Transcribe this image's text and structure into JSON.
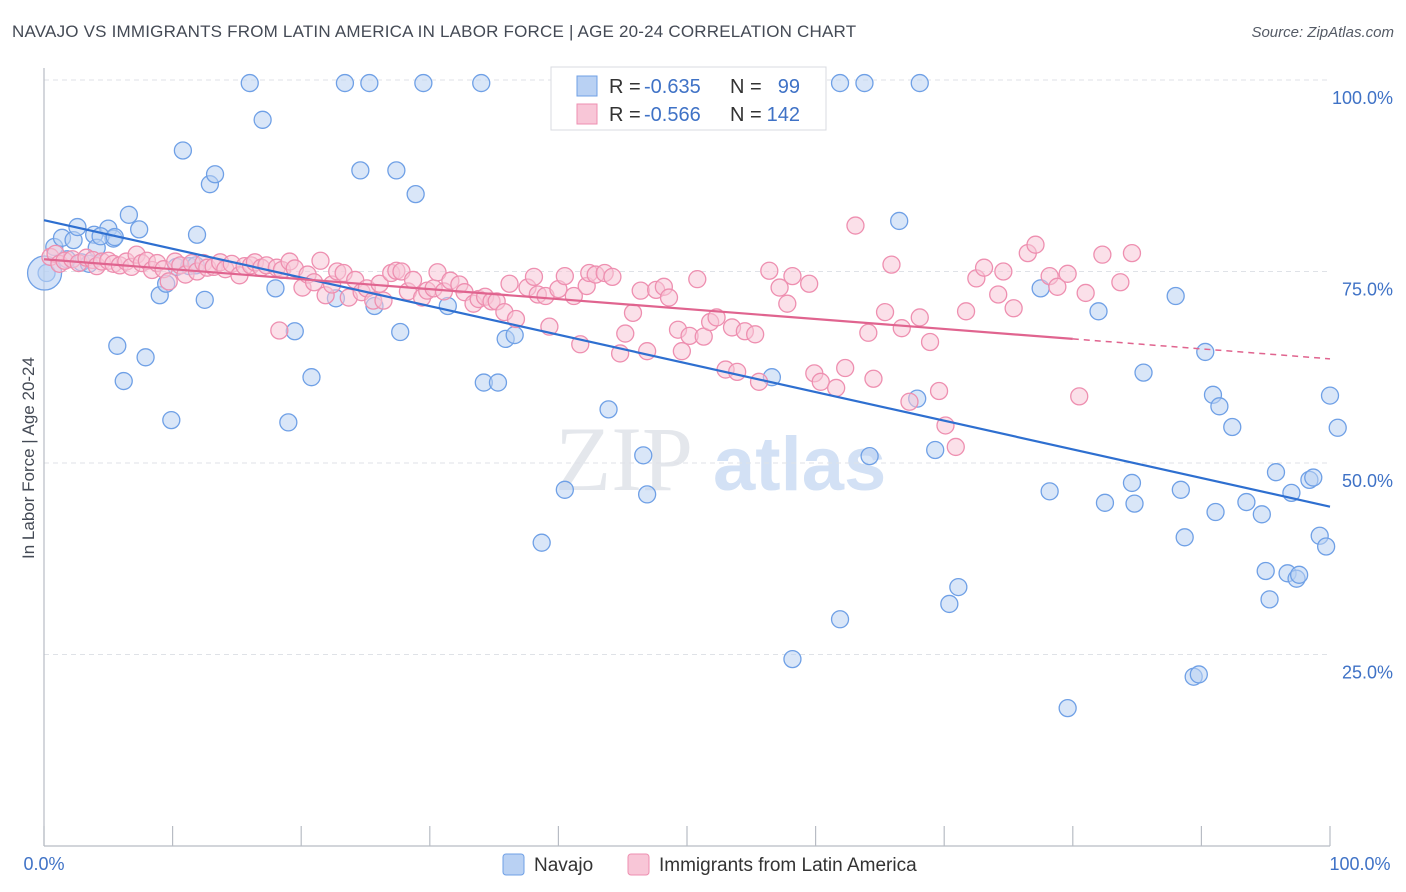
{
  "title": "NAVAJO VS IMMIGRANTS FROM LATIN AMERICA IN LABOR FORCE | AGE 20-24 CORRELATION CHART",
  "source": "Source: ZipAtlas.com",
  "watermark": {
    "zip": "ZIP",
    "atlas": "atlas"
  },
  "chart_data": {
    "type": "scatter",
    "title": "NAVAJO VS IMMIGRANTS FROM LATIN AMERICA IN LABOR FORCE | AGE 20-24 CORRELATION CHART",
    "xlabel": "",
    "ylabel": "In Labor Force | Age 20-24",
    "xlim": [
      0,
      100
    ],
    "ylim": [
      0,
      100
    ],
    "x_tick_labels": [
      "0.0%",
      "100.0%"
    ],
    "y_ticks": [
      25,
      50,
      75,
      100
    ],
    "y_tick_labels": [
      "25.0%",
      "50.0%",
      "75.0%",
      "100.0%"
    ],
    "grid": true,
    "legend_position": "top-center",
    "stats_legend": [
      {
        "r_label": "R = ",
        "r": "-0.635",
        "n_label": "N = ",
        "n": "99"
      },
      {
        "r_label": "R = ",
        "r": "-0.566",
        "n_label": "N = ",
        "n": "142"
      }
    ],
    "series": [
      {
        "name": "Navajo",
        "color": "#6fa0e6",
        "fill": "#b9d1f3",
        "trend_color": "#2e6fd0",
        "trend": {
          "x0": 0,
          "y0": 81.7,
          "x1": 100,
          "y1": 44.3
        },
        "points": [
          [
            0.2,
            74.8
          ],
          [
            0.8,
            78.2
          ],
          [
            1.4,
            79.4
          ],
          [
            1.8,
            76.6
          ],
          [
            2.3,
            79.1
          ],
          [
            2.6,
            80.8
          ],
          [
            2.9,
            76.2
          ],
          [
            3.5,
            76.0
          ],
          [
            3.9,
            79.8
          ],
          [
            4.1,
            78.1
          ],
          [
            5.0,
            80.6
          ],
          [
            5.4,
            79.3
          ],
          [
            4.4,
            79.6
          ],
          [
            5.5,
            79.5
          ],
          [
            6.6,
            82.4
          ],
          [
            7.4,
            80.5
          ],
          [
            5.7,
            65.3
          ],
          [
            6.2,
            60.7
          ],
          [
            7.9,
            63.8
          ],
          [
            9.0,
            71.9
          ],
          [
            9.5,
            73.4
          ],
          [
            9.9,
            55.6
          ],
          [
            10.3,
            75.6
          ],
          [
            10.8,
            90.8
          ],
          [
            11.3,
            75.7
          ],
          [
            11.8,
            75.8
          ],
          [
            11.9,
            79.8
          ],
          [
            12.5,
            71.3
          ],
          [
            12.9,
            86.4
          ],
          [
            13.3,
            87.7
          ],
          [
            16.0,
            99.6
          ],
          [
            17.0,
            94.8
          ],
          [
            18.0,
            72.8
          ],
          [
            19.0,
            55.3
          ],
          [
            19.5,
            67.2
          ],
          [
            20.8,
            61.2
          ],
          [
            22.7,
            71.5
          ],
          [
            23.4,
            99.6
          ],
          [
            24.6,
            88.2
          ],
          [
            25.3,
            99.6
          ],
          [
            25.7,
            70.5
          ],
          [
            27.4,
            88.2
          ],
          [
            27.7,
            67.1
          ],
          [
            28.9,
            85.1
          ],
          [
            29.5,
            99.6
          ],
          [
            31.4,
            70.5
          ],
          [
            34.0,
            99.6
          ],
          [
            34.2,
            60.5
          ],
          [
            35.3,
            60.5
          ],
          [
            35.9,
            66.2
          ],
          [
            36.6,
            66.7
          ],
          [
            38.7,
            39.6
          ],
          [
            40.5,
            46.5
          ],
          [
            43.9,
            57.0
          ],
          [
            46.6,
            51.0
          ],
          [
            46.9,
            45.9
          ],
          [
            56.0,
            99.6
          ],
          [
            56.6,
            61.2
          ],
          [
            58.2,
            24.4
          ],
          [
            59.3,
            99.6
          ],
          [
            61.9,
            29.6
          ],
          [
            61.9,
            99.6
          ],
          [
            63.8,
            99.6
          ],
          [
            64.2,
            50.9
          ],
          [
            66.5,
            81.6
          ],
          [
            67.9,
            58.4
          ],
          [
            68.1,
            99.6
          ],
          [
            69.3,
            51.7
          ],
          [
            70.4,
            31.6
          ],
          [
            71.1,
            33.8
          ],
          [
            77.5,
            72.8
          ],
          [
            78.2,
            46.3
          ],
          [
            79.6,
            18.0
          ],
          [
            82.0,
            69.8
          ],
          [
            82.5,
            44.8
          ],
          [
            84.6,
            47.4
          ],
          [
            84.8,
            44.7
          ],
          [
            85.5,
            61.8
          ],
          [
            88.0,
            71.8
          ],
          [
            88.4,
            46.5
          ],
          [
            88.7,
            40.3
          ],
          [
            89.4,
            22.1
          ],
          [
            89.8,
            22.4
          ],
          [
            90.3,
            64.5
          ],
          [
            90.9,
            58.9
          ],
          [
            91.1,
            43.6
          ],
          [
            91.4,
            57.4
          ],
          [
            92.4,
            54.7
          ],
          [
            93.5,
            44.9
          ],
          [
            94.7,
            43.3
          ],
          [
            95.0,
            35.9
          ],
          [
            95.3,
            32.2
          ],
          [
            95.8,
            48.8
          ],
          [
            96.7,
            35.6
          ],
          [
            97.0,
            46.1
          ],
          [
            97.4,
            34.9
          ],
          [
            97.6,
            35.4
          ],
          [
            98.4,
            47.8
          ],
          [
            98.7,
            48.1
          ],
          [
            99.2,
            40.5
          ],
          [
            99.7,
            39.1
          ],
          [
            100.0,
            58.8
          ],
          [
            100.6,
            54.6
          ]
        ]
      },
      {
        "name": "Immigrants from Latin America",
        "color": "#ee8fb0",
        "fill": "#f8c6d7",
        "trend_color": "#e0648f",
        "trend": {
          "x0": 0,
          "y0": 76.6,
          "x1": 80,
          "y1": 66.2
        },
        "trend_dash": {
          "x0": 80,
          "y0": 66.2,
          "x1": 100,
          "y1": 63.6
        },
        "points": [
          [
            0.5,
            76.9
          ],
          [
            0.9,
            77.3
          ],
          [
            1.2,
            76.0
          ],
          [
            1.6,
            76.4
          ],
          [
            2.2,
            76.6
          ],
          [
            2.7,
            76.1
          ],
          [
            3.3,
            76.8
          ],
          [
            3.8,
            76.5
          ],
          [
            4.1,
            75.7
          ],
          [
            4.5,
            76.3
          ],
          [
            5.0,
            76.4
          ],
          [
            5.4,
            76.0
          ],
          [
            5.9,
            75.8
          ],
          [
            6.4,
            76.3
          ],
          [
            6.8,
            75.6
          ],
          [
            7.2,
            77.2
          ],
          [
            7.6,
            76.1
          ],
          [
            8.0,
            76.4
          ],
          [
            8.4,
            75.2
          ],
          [
            8.8,
            76.1
          ],
          [
            9.3,
            75.3
          ],
          [
            9.7,
            73.7
          ],
          [
            10.2,
            76.3
          ],
          [
            10.6,
            75.8
          ],
          [
            11.0,
            74.6
          ],
          [
            11.5,
            76.1
          ],
          [
            11.9,
            75.0
          ],
          [
            12.4,
            76.1
          ],
          [
            12.7,
            75.5
          ],
          [
            13.2,
            75.6
          ],
          [
            13.7,
            76.2
          ],
          [
            14.1,
            75.3
          ],
          [
            14.6,
            76.0
          ],
          [
            15.2,
            74.5
          ],
          [
            15.6,
            75.7
          ],
          [
            16.1,
            75.8
          ],
          [
            16.4,
            76.2
          ],
          [
            16.9,
            75.5
          ],
          [
            17.3,
            75.8
          ],
          [
            18.1,
            75.5
          ],
          [
            18.5,
            75.2
          ],
          [
            18.3,
            67.3
          ],
          [
            19.1,
            76.3
          ],
          [
            19.5,
            75.4
          ],
          [
            20.1,
            72.9
          ],
          [
            20.5,
            74.6
          ],
          [
            21.0,
            73.6
          ],
          [
            21.5,
            76.4
          ],
          [
            21.9,
            71.9
          ],
          [
            22.4,
            73.3
          ],
          [
            22.8,
            75.0
          ],
          [
            23.3,
            74.8
          ],
          [
            23.7,
            71.6
          ],
          [
            24.2,
            73.9
          ],
          [
            24.7,
            72.3
          ],
          [
            25.1,
            72.8
          ],
          [
            25.6,
            71.2
          ],
          [
            26.1,
            73.4
          ],
          [
            26.4,
            71.2
          ],
          [
            27.0,
            74.8
          ],
          [
            27.4,
            75.1
          ],
          [
            27.8,
            75.0
          ],
          [
            28.3,
            72.4
          ],
          [
            28.7,
            73.9
          ],
          [
            29.4,
            71.6
          ],
          [
            29.8,
            72.5
          ],
          [
            30.3,
            72.8
          ],
          [
            30.6,
            74.9
          ],
          [
            31.1,
            72.4
          ],
          [
            31.6,
            73.8
          ],
          [
            32.3,
            73.3
          ],
          [
            32.7,
            72.3
          ],
          [
            33.4,
            70.8
          ],
          [
            33.8,
            71.4
          ],
          [
            34.3,
            71.7
          ],
          [
            34.8,
            71.1
          ],
          [
            35.2,
            71.1
          ],
          [
            35.8,
            69.7
          ],
          [
            36.2,
            73.4
          ],
          [
            36.7,
            68.8
          ],
          [
            37.6,
            72.9
          ],
          [
            38.1,
            74.3
          ],
          [
            38.4,
            72.0
          ],
          [
            39.0,
            71.8
          ],
          [
            39.3,
            67.8
          ],
          [
            40.0,
            72.7
          ],
          [
            40.5,
            74.4
          ],
          [
            41.2,
            71.8
          ],
          [
            41.7,
            65.5
          ],
          [
            42.2,
            73.1
          ],
          [
            42.4,
            74.8
          ],
          [
            42.9,
            74.6
          ],
          [
            43.6,
            74.8
          ],
          [
            44.2,
            74.3
          ],
          [
            44.8,
            64.3
          ],
          [
            45.2,
            66.9
          ],
          [
            45.8,
            69.6
          ],
          [
            46.4,
            72.5
          ],
          [
            46.9,
            64.6
          ],
          [
            47.6,
            72.6
          ],
          [
            48.2,
            73.0
          ],
          [
            48.6,
            71.6
          ],
          [
            49.3,
            67.4
          ],
          [
            49.6,
            64.6
          ],
          [
            50.2,
            66.6
          ],
          [
            50.8,
            74.0
          ],
          [
            51.3,
            66.5
          ],
          [
            51.8,
            68.4
          ],
          [
            52.3,
            69.0
          ],
          [
            53.0,
            62.2
          ],
          [
            53.5,
            67.7
          ],
          [
            53.9,
            61.9
          ],
          [
            54.5,
            67.2
          ],
          [
            55.3,
            66.8
          ],
          [
            55.6,
            60.6
          ],
          [
            56.4,
            75.1
          ],
          [
            57.2,
            72.9
          ],
          [
            57.8,
            70.8
          ],
          [
            58.2,
            74.4
          ],
          [
            59.5,
            73.4
          ],
          [
            59.9,
            61.7
          ],
          [
            60.4,
            60.6
          ],
          [
            61.6,
            59.8
          ],
          [
            62.3,
            62.4
          ],
          [
            63.1,
            81.0
          ],
          [
            64.1,
            67.0
          ],
          [
            64.5,
            61.0
          ],
          [
            65.4,
            69.7
          ],
          [
            65.9,
            75.9
          ],
          [
            66.7,
            67.6
          ],
          [
            67.3,
            58.0
          ],
          [
            68.1,
            69.0
          ],
          [
            68.9,
            65.8
          ],
          [
            69.6,
            59.4
          ],
          [
            70.1,
            54.9
          ],
          [
            70.9,
            52.1
          ],
          [
            71.7,
            69.8
          ],
          [
            72.5,
            74.1
          ],
          [
            73.1,
            75.5
          ],
          [
            74.2,
            72.0
          ],
          [
            74.6,
            75.0
          ],
          [
            75.4,
            70.2
          ],
          [
            76.5,
            77.4
          ],
          [
            77.1,
            78.5
          ],
          [
            78.2,
            74.4
          ],
          [
            78.8,
            73.0
          ],
          [
            79.6,
            74.7
          ],
          [
            80.5,
            58.7
          ],
          [
            81.0,
            72.2
          ],
          [
            82.3,
            77.2
          ],
          [
            83.7,
            73.6
          ],
          [
            84.6,
            77.4
          ]
        ]
      }
    ]
  },
  "bottom_legend": [
    {
      "label": "Navajo"
    },
    {
      "label": "Immigrants from Latin America"
    }
  ]
}
